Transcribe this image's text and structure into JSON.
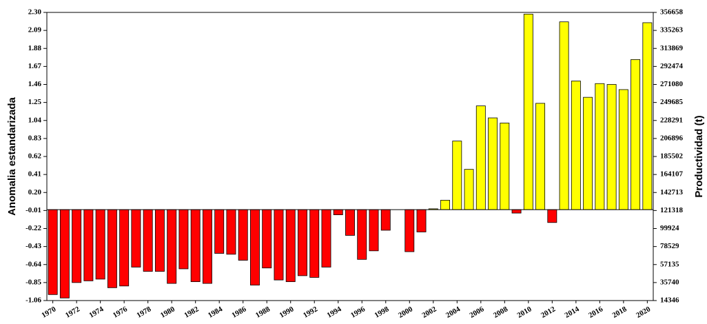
{
  "chart_data": {
    "type": "bar",
    "y_label": "Anomalia estandarizada",
    "y2_label": "Productividad (t)",
    "categories": [
      "1970",
      null,
      "1972",
      null,
      "1974",
      null,
      "1976",
      null,
      "1978",
      null,
      "1980",
      null,
      "1982",
      null,
      "1984",
      null,
      "1986",
      null,
      "1988",
      null,
      "1990",
      null,
      "1992",
      null,
      "1994",
      null,
      "1996",
      null,
      "1998",
      null,
      "2000",
      null,
      "2002",
      null,
      "2004",
      null,
      "2006",
      null,
      "2008",
      null,
      "2010",
      null,
      "2012",
      null,
      "2014",
      null,
      "2016",
      null,
      "2018",
      null,
      "2020"
    ],
    "values": [
      -0.99,
      -1.03,
      -0.85,
      -0.83,
      -0.81,
      -0.91,
      -0.89,
      -0.67,
      -0.72,
      -0.72,
      -0.86,
      -0.69,
      -0.84,
      -0.86,
      -0.51,
      -0.52,
      -0.59,
      -0.88,
      -0.68,
      -0.82,
      -0.84,
      -0.77,
      -0.79,
      -0.67,
      -0.06,
      -0.3,
      -0.58,
      -0.48,
      -0.24,
      0,
      -0.49,
      -0.26,
      0.01,
      0.11,
      0.8,
      0.47,
      1.21,
      1.07,
      1.01,
      -0.04,
      2.28,
      1.24,
      -0.15,
      2.19,
      1.5,
      1.31,
      1.47,
      1.46,
      1.4,
      1.75,
      2.18
    ],
    "positive_color": "#ffff00",
    "negative_color": "#ff0000",
    "ylim": [
      -1.06,
      2.3
    ],
    "yticks": [
      -1.06,
      -0.85,
      -0.64,
      -0.43,
      -0.22,
      -0.01,
      {
        "value": 0.2,
        "label": "0.20"
      },
      0.41,
      0.62,
      0.83,
      1.04,
      1.25,
      1.46,
      1.67,
      1.88,
      2.09,
      {
        "value": 2.3,
        "label": "2.30"
      }
    ],
    "y2lim": [
      14346,
      356658
    ],
    "y2ticks": [
      14346,
      35740,
      57135,
      78529,
      99924,
      121318,
      142713,
      164107,
      185502,
      206896,
      228291,
      249685,
      271080,
      292474,
      313869,
      335263,
      356658
    ],
    "grid": false
  }
}
